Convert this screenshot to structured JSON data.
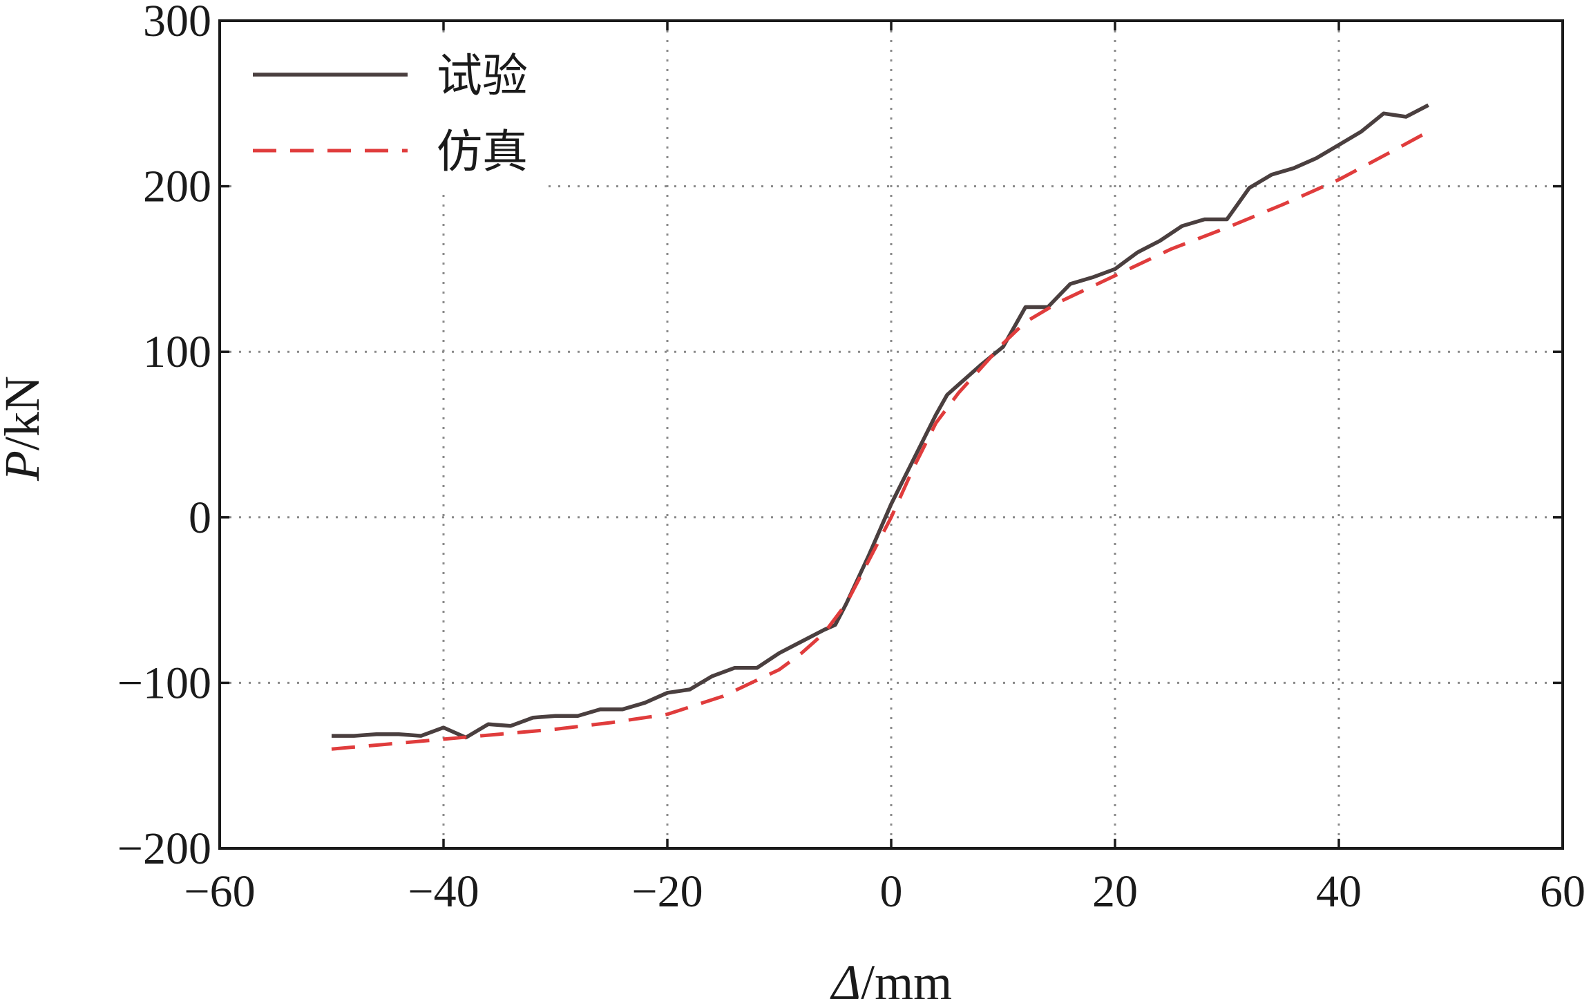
{
  "chart_data": {
    "type": "line",
    "xlabel_symbol": "Δ",
    "xlabel_unit": "/mm",
    "ylabel_symbol": "P",
    "ylabel_unit": "/kN",
    "xlim": [
      -60,
      60
    ],
    "ylim": [
      -200,
      300
    ],
    "xticks": [
      -60,
      -40,
      -20,
      0,
      20,
      40,
      60
    ],
    "yticks": [
      -200,
      -100,
      0,
      100,
      200,
      300
    ],
    "xtick_labels": [
      "−60",
      "−40",
      "−20",
      "0",
      "20",
      "40",
      "60"
    ],
    "ytick_labels": [
      "−200",
      "−100",
      "0",
      "100",
      "200",
      "300"
    ],
    "grid": true,
    "legend_position": "top-left",
    "series": [
      {
        "name": "试验",
        "color": "#4a3f3f",
        "style": "solid",
        "x": [
          -50,
          -48,
          -46,
          -44,
          -42,
          -40,
          -38,
          -36,
          -34,
          -32,
          -30,
          -28,
          -26,
          -24,
          -22,
          -20,
          -18,
          -16,
          -14,
          -12,
          -10,
          -8,
          -6,
          -5,
          -4,
          -2,
          0,
          2,
          4,
          5,
          6,
          8,
          10,
          12,
          14,
          16,
          18,
          20,
          22,
          24,
          26,
          28,
          30,
          32,
          34,
          36,
          38,
          40,
          42,
          44,
          46,
          48
        ],
        "y": [
          -132,
          -132,
          -131,
          -131,
          -132,
          -127,
          -133,
          -125,
          -126,
          -121,
          -120,
          -120,
          -116,
          -116,
          -112,
          -106,
          -104,
          -96,
          -91,
          -91,
          -82,
          -75,
          -68,
          -65,
          -52,
          -23,
          8,
          35,
          62,
          74,
          80,
          92,
          103,
          127,
          127,
          141,
          145,
          150,
          160,
          167,
          176,
          180,
          180,
          199,
          207,
          211,
          217,
          225,
          233,
          244,
          242,
          249
        ]
      },
      {
        "name": "仿真",
        "color": "#e03c3c",
        "style": "dashed",
        "x": [
          -50,
          -45,
          -40,
          -35,
          -30,
          -25,
          -20,
          -15,
          -10,
          -8,
          -6,
          -4,
          -2,
          0,
          2,
          4,
          6,
          8,
          10,
          12,
          15,
          20,
          25,
          30,
          35,
          40,
          45,
          48
        ],
        "y": [
          -140,
          -137,
          -134,
          -131,
          -128,
          -124,
          -119,
          -108,
          -92,
          -82,
          -70,
          -52,
          -26,
          0,
          30,
          57,
          75,
          90,
          105,
          118,
          130,
          146,
          162,
          175,
          189,
          204,
          222,
          233
        ]
      }
    ]
  }
}
